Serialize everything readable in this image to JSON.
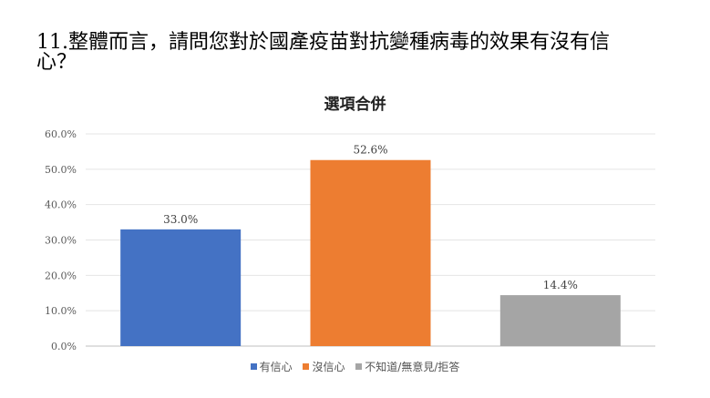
{
  "question": {
    "line1": "11.整體而言，請問您對於國產疫苗對抗變種病毒的效果有沒有信",
    "line2": "心？"
  },
  "chart_data": {
    "type": "bar",
    "title": "選項合併",
    "categories": [
      "有信心",
      "沒信心",
      "不知道/無意見/拒答"
    ],
    "values": [
      33.0,
      52.6,
      14.4
    ],
    "value_labels": [
      "33.0%",
      "52.6%",
      "14.4%"
    ],
    "colors": [
      "#4472c4",
      "#ed7d31",
      "#a5a5a5"
    ],
    "ylim": [
      0,
      60
    ],
    "yticks": [
      "0.0%",
      "10.0%",
      "20.0%",
      "30.0%",
      "40.0%",
      "50.0%",
      "60.0%"
    ],
    "grid": true,
    "legend": "bottom"
  }
}
